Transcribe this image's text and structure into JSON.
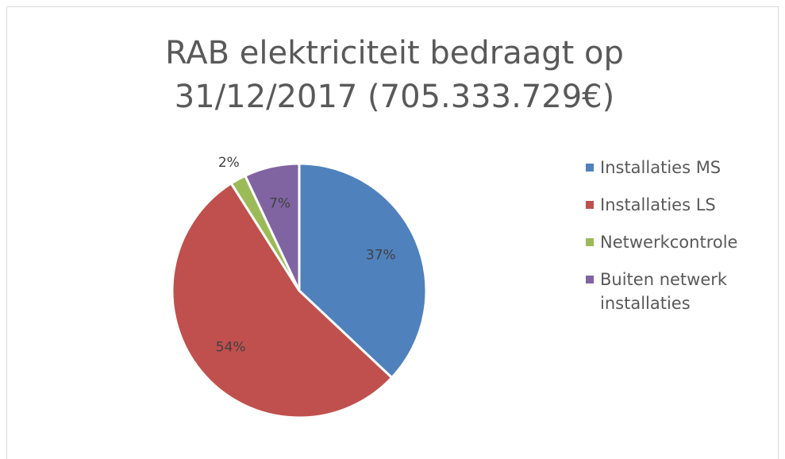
{
  "chart_data": {
    "type": "pie",
    "title": [
      "RAB elektriciteit bedraagt op",
      "31/12/2017 (705.333.729€)"
    ],
    "categories": [
      "Installaties MS",
      "Installaties LS",
      "Netwerkcontrole",
      "Buiten netwerk installaties"
    ],
    "values": [
      37,
      54,
      2,
      7
    ],
    "value_labels": [
      "37%",
      "54%",
      "2%",
      "7%"
    ],
    "colors": [
      "#4f81bd",
      "#c0504d",
      "#9bbb59",
      "#8064a2"
    ],
    "legend": "right"
  }
}
